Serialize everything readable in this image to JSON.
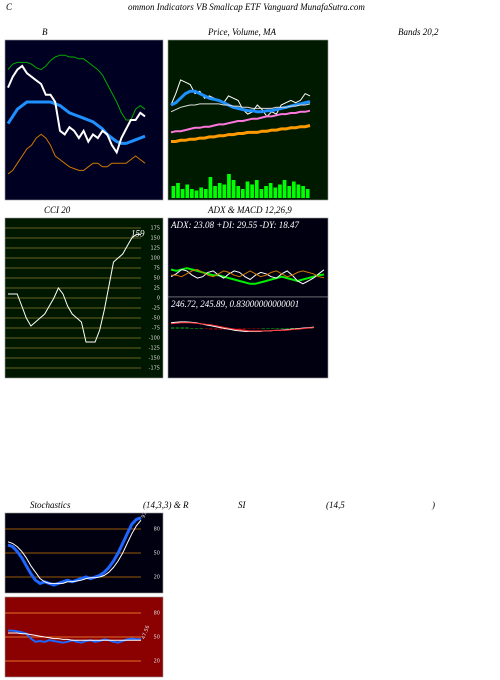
{
  "header": {
    "initial": "C",
    "text": "ommon  Indicators VB Smallcap ETF Vanguard MunafaSutra.com"
  },
  "watermark": "MunafaSutra.com",
  "chart_data": [
    {
      "type": "line",
      "title": "B",
      "subtitle": "Bands 20,2",
      "ylim": [
        20,
        100
      ],
      "series": [
        {
          "color": "#00aa00",
          "width": 1,
          "values": [
            88,
            91,
            92,
            92,
            92,
            91,
            89,
            88,
            90,
            93,
            95,
            96,
            96,
            95,
            95,
            94,
            94,
            92,
            90,
            88,
            85,
            80,
            75,
            70,
            64,
            60,
            60,
            66,
            68,
            66
          ]
        },
        {
          "color": "#1e90ff",
          "width": 3,
          "values": [
            58,
            62,
            66,
            68,
            70,
            70,
            70,
            70,
            70,
            70,
            69,
            68,
            66,
            64,
            63,
            62,
            61,
            60,
            59,
            57,
            55,
            52,
            50,
            48,
            47,
            47,
            48,
            49,
            50,
            51
          ]
        },
        {
          "color": "#cc7700",
          "width": 1,
          "values": [
            30,
            32,
            36,
            40,
            44,
            46,
            50,
            52,
            50,
            46,
            40,
            38,
            36,
            34,
            33,
            32,
            32,
            34,
            36,
            36,
            34,
            34,
            36,
            36,
            36,
            36,
            38,
            40,
            38,
            36
          ]
        },
        {
          "color": "#ffffff",
          "width": 2,
          "values": [
            78,
            84,
            88,
            90,
            86,
            84,
            82,
            80,
            74,
            74,
            70,
            54,
            52,
            56,
            54,
            50,
            54,
            48,
            52,
            50,
            54,
            52,
            46,
            42,
            50,
            55,
            60,
            60,
            64,
            62
          ]
        }
      ]
    },
    {
      "type": "line",
      "title": "Price, Volume, MA",
      "ylim": [
        0,
        100
      ],
      "series": [
        {
          "color": "#ffffff",
          "width": 1,
          "values": [
            50,
            60,
            72,
            70,
            68,
            60,
            62,
            56,
            58,
            56,
            54,
            52,
            58,
            56,
            54,
            46,
            42,
            44,
            50,
            46,
            40,
            44,
            42,
            50,
            52,
            54,
            52,
            54,
            60,
            58
          ]
        },
        {
          "color": "#1e90ff",
          "width": 3,
          "values": [
            50,
            52,
            56,
            60,
            62,
            62,
            60,
            58,
            56,
            55,
            54,
            52,
            50,
            48,
            47,
            46,
            45,
            45,
            44,
            44,
            45,
            45,
            46,
            47,
            48,
            49,
            50,
            51,
            52,
            53
          ]
        },
        {
          "color": "#dddddd",
          "width": 1,
          "values": [
            44,
            46,
            48,
            49,
            50,
            50,
            51,
            51,
            51,
            51,
            51,
            50,
            50,
            49,
            49,
            48,
            48,
            47,
            47,
            47,
            47,
            47,
            48,
            48,
            48,
            49,
            49,
            50,
            50,
            51
          ]
        },
        {
          "color": "#ff77dd",
          "width": 2,
          "values": [
            26,
            27,
            27,
            28,
            29,
            30,
            30,
            31,
            31,
            32,
            33,
            33,
            34,
            35,
            36,
            36,
            37,
            38,
            38,
            39,
            40,
            40,
            41,
            42,
            42,
            43,
            43,
            44,
            44,
            45
          ]
        },
        {
          "color": "#ff9900",
          "width": 3,
          "values": [
            18,
            18,
            19,
            19,
            20,
            20,
            21,
            21,
            22,
            22,
            23,
            23,
            24,
            24,
            25,
            25,
            26,
            26,
            26,
            27,
            27,
            28,
            28,
            29,
            29,
            30,
            30,
            31,
            31,
            32
          ]
        }
      ],
      "volume": {
        "color": "#00ff00",
        "vlim": [
          0,
          100
        ],
        "values": [
          40,
          50,
          30,
          45,
          30,
          25,
          35,
          30,
          70,
          40,
          50,
          45,
          80,
          60,
          40,
          30,
          55,
          45,
          60,
          30,
          40,
          50,
          35,
          45,
          60,
          40,
          55,
          45,
          40,
          30
        ]
      }
    },
    {
      "type": "line",
      "title": "CCI 20",
      "ylim": [
        -200,
        200
      ],
      "yticks": [
        175,
        150,
        125,
        100,
        75,
        50,
        25,
        0,
        -25,
        -50,
        -75,
        -100,
        -125,
        -150,
        -175
      ],
      "grid_color": "#8a7a30",
      "series": [
        {
          "color": "#ffffff",
          "width": 1,
          "values": [
            10,
            10,
            10,
            -20,
            -50,
            -70,
            -60,
            -50,
            -40,
            -20,
            0,
            25,
            10,
            -20,
            -40,
            -50,
            -60,
            -110,
            -110,
            -110,
            -80,
            -30,
            30,
            90,
            100,
            110,
            130,
            150,
            159,
            159
          ]
        }
      ]
    },
    {
      "type": "line",
      "title": "ADX  & MACD 12,26,9",
      "annotation": "ADX: 23.08  +DI: 29.55 -DY: 18.47",
      "ylim": [
        0,
        60
      ],
      "series": [
        {
          "color": "#00ee00",
          "width": 2,
          "values": [
            30,
            28,
            30,
            32,
            30,
            28,
            26,
            24,
            22,
            22,
            20,
            18,
            16,
            14,
            12,
            10,
            10,
            12,
            14,
            16,
            18,
            20,
            18,
            16,
            14,
            16,
            18,
            20,
            22,
            23.08
          ]
        },
        {
          "color": "#ffffff",
          "width": 1,
          "values": [
            20,
            24,
            30,
            28,
            22,
            18,
            20,
            26,
            28,
            22,
            18,
            24,
            28,
            26,
            20,
            16,
            22,
            26,
            24,
            20,
            18,
            24,
            28,
            22,
            14,
            10,
            14,
            18,
            24,
            29.55
          ]
        },
        {
          "color": "#cc7700",
          "width": 1,
          "values": [
            22,
            22,
            20,
            24,
            28,
            30,
            26,
            22,
            20,
            24,
            28,
            26,
            22,
            20,
            24,
            28,
            24,
            20,
            22,
            26,
            28,
            24,
            20,
            22,
            26,
            28,
            26,
            24,
            20,
            18.47
          ]
        }
      ]
    },
    {
      "type": "line",
      "annotation": "246.72,  245.89,  0.83000000000001",
      "ylim": [
        -10,
        10
      ],
      "histogram": {
        "color": "#00cc00",
        "negative_color": "#cc0000",
        "values": [
          1,
          1,
          1,
          1,
          0.5,
          0.5,
          0,
          -0.5,
          -1,
          -1,
          -1,
          -1,
          -1,
          -1,
          -1,
          -1,
          -0.5,
          -0.5,
          -0.5,
          0,
          0,
          0,
          0,
          0.5,
          0.5,
          0.5,
          0.5,
          0.5,
          0.5,
          0.5
        ]
      },
      "series": [
        {
          "color": "#ffffff",
          "width": 1,
          "values": [
            6,
            6.5,
            7,
            7,
            6.5,
            6,
            5,
            4,
            3,
            2,
            1,
            0,
            -1,
            -2,
            -2.5,
            -3,
            -3,
            -3,
            -3,
            -2.5,
            -2.5,
            -2,
            -2,
            -1.5,
            -1,
            -0.5,
            0,
            0.5,
            1,
            1.5
          ]
        },
        {
          "color": "#ff3333",
          "width": 1,
          "values": [
            5,
            5.5,
            6,
            6,
            6,
            5.5,
            5,
            4.5,
            4,
            3,
            2,
            1,
            0,
            -1,
            -1.5,
            -2,
            -2.5,
            -2.5,
            -2.5,
            -2.5,
            -2.5,
            -2,
            -2,
            -2,
            -1.5,
            -1,
            -0.5,
            0,
            0.5,
            1
          ]
        }
      ]
    },
    {
      "type": "line",
      "title_parts": [
        "Stochastics",
        "(14,3,3) & R",
        "SI",
        "(14,5",
        ")"
      ],
      "ylim": [
        0,
        100
      ],
      "yticks": [
        80,
        50,
        20
      ],
      "grid_color": "#cc7700",
      "series": [
        {
          "color": "#1e66ff",
          "width": 3,
          "values": [
            60,
            58,
            52,
            44,
            34,
            24,
            16,
            12,
            14,
            12,
            10,
            12,
            14,
            16,
            14,
            16,
            18,
            20,
            18,
            20,
            22,
            26,
            32,
            40,
            50,
            62,
            74,
            86,
            92,
            93.95
          ]
        },
        {
          "color": "#ffffff",
          "width": 1,
          "values": [
            64,
            62,
            58,
            52,
            44,
            34,
            26,
            18,
            14,
            12,
            12,
            12,
            12,
            14,
            14,
            15,
            16,
            18,
            19,
            19,
            20,
            22,
            26,
            32,
            40,
            50,
            62,
            74,
            84,
            91
          ]
        }
      ]
    },
    {
      "type": "line",
      "ylim": [
        0,
        100
      ],
      "yticks": [
        80,
        50,
        20
      ],
      "grid_color": "#ff9933",
      "series": [
        {
          "color": "#1e66ff",
          "width": 2,
          "values": [
            58,
            58,
            57,
            56,
            54,
            48,
            44,
            45,
            44,
            46,
            45,
            44,
            43,
            44,
            46,
            44,
            43,
            45,
            46,
            44,
            45,
            47,
            46,
            44,
            43,
            45,
            47,
            48,
            47,
            47.56
          ]
        },
        {
          "color": "#ffffff",
          "width": 1,
          "values": [
            55,
            55,
            55,
            54,
            54,
            53,
            52,
            51,
            50,
            49,
            48,
            48,
            47,
            47,
            46,
            46,
            46,
            46,
            46,
            46,
            46,
            46,
            46,
            46,
            46,
            46,
            46,
            46,
            46,
            46
          ]
        }
      ]
    }
  ]
}
